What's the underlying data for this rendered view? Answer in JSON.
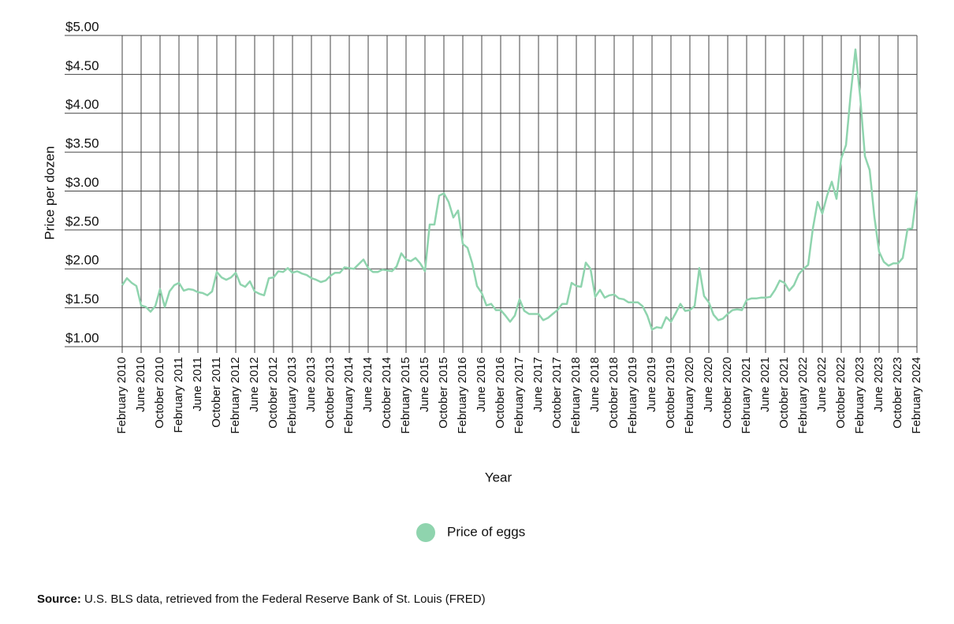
{
  "chart_data": {
    "type": "line",
    "y_label": "Price per dozen",
    "x_label": "Year",
    "categories": [
      "February 2010",
      null,
      null,
      null,
      "June 2010",
      null,
      null,
      null,
      "October 2010",
      null,
      null,
      null,
      "February 2011",
      null,
      null,
      null,
      "June 2011",
      null,
      null,
      null,
      "October 2011",
      null,
      null,
      null,
      "February 2012",
      null,
      null,
      null,
      "June 2012",
      null,
      null,
      null,
      "October 2012",
      null,
      null,
      null,
      "February 2013",
      null,
      null,
      null,
      "June 2013",
      null,
      null,
      null,
      "October 2013",
      null,
      null,
      null,
      "February 2014",
      null,
      null,
      null,
      "June 2014",
      null,
      null,
      null,
      "October 2014",
      null,
      null,
      null,
      "February 2015",
      null,
      null,
      null,
      "June 2015",
      null,
      null,
      null,
      "October 2015",
      null,
      null,
      null,
      "February 2016",
      null,
      null,
      null,
      "June 2016",
      null,
      null,
      null,
      "October 2016",
      null,
      null,
      null,
      "February 2017",
      null,
      null,
      null,
      "June 2017",
      null,
      null,
      null,
      "October 2017",
      null,
      null,
      null,
      "February 2018",
      null,
      null,
      null,
      "June 2018",
      null,
      null,
      null,
      "October 2018",
      null,
      null,
      null,
      "February 2019",
      null,
      null,
      null,
      "June 2019",
      null,
      null,
      null,
      "October 2019",
      null,
      null,
      null,
      "February 2020",
      null,
      null,
      null,
      "June 2020",
      null,
      null,
      null,
      "October 2020",
      null,
      null,
      null,
      "February 2021",
      null,
      null,
      null,
      "June 2021",
      null,
      null,
      null,
      "October 2021",
      null,
      null,
      null,
      "February 2022",
      null,
      null,
      null,
      "June 2022",
      null,
      null,
      null,
      "October 2022",
      null,
      null,
      null,
      "February 2023",
      null,
      null,
      null,
      "June 2023",
      null,
      null,
      null,
      "October 2023",
      null,
      null,
      null,
      "February 2024"
    ],
    "series": [
      {
        "name": "Price of eggs",
        "color": "#8fd4ae",
        "values": [
          1.79,
          1.88,
          1.82,
          1.78,
          1.53,
          1.51,
          1.45,
          1.52,
          1.74,
          1.51,
          1.71,
          1.79,
          1.82,
          1.72,
          1.74,
          1.73,
          1.7,
          1.69,
          1.66,
          1.71,
          1.96,
          1.89,
          1.86,
          1.89,
          1.95,
          1.8,
          1.77,
          1.84,
          1.71,
          1.68,
          1.66,
          1.88,
          1.89,
          1.97,
          1.96,
          2.01,
          1.95,
          1.97,
          1.94,
          1.92,
          1.88,
          1.86,
          1.83,
          1.85,
          1.91,
          1.95,
          1.95,
          2.02,
          2.01,
          2.0,
          2.06,
          2.12,
          2.01,
          1.96,
          1.96,
          1.99,
          1.98,
          1.97,
          2.03,
          2.2,
          2.12,
          2.1,
          2.14,
          2.07,
          1.97,
          2.57,
          2.57,
          2.94,
          2.97,
          2.86,
          2.66,
          2.75,
          2.32,
          2.27,
          2.07,
          1.78,
          1.69,
          1.53,
          1.55,
          1.47,
          1.47,
          1.4,
          1.32,
          1.4,
          1.61,
          1.46,
          1.42,
          1.42,
          1.42,
          1.34,
          1.37,
          1.42,
          1.47,
          1.55,
          1.55,
          1.82,
          1.78,
          1.77,
          2.08,
          2.0,
          1.64,
          1.73,
          1.63,
          1.66,
          1.67,
          1.62,
          1.61,
          1.57,
          1.57,
          1.57,
          1.52,
          1.4,
          1.22,
          1.25,
          1.24,
          1.38,
          1.32,
          1.43,
          1.55,
          1.46,
          1.47,
          1.52,
          2.01,
          1.65,
          1.57,
          1.41,
          1.34,
          1.36,
          1.42,
          1.47,
          1.48,
          1.47,
          1.6,
          1.62,
          1.62,
          1.63,
          1.63,
          1.64,
          1.73,
          1.85,
          1.82,
          1.72,
          1.79,
          1.93,
          2.0,
          2.05,
          2.52,
          2.86,
          2.71,
          2.94,
          3.12,
          2.9,
          3.42,
          3.59,
          4.25,
          4.82,
          4.21,
          3.45,
          3.27,
          2.67,
          2.22,
          2.09,
          2.04,
          2.07,
          2.07,
          2.14,
          2.51,
          2.52,
          3.0
        ]
      }
    ],
    "ylim": [
      1,
      5
    ],
    "yticks": [
      {
        "value": 1,
        "label": "$1.00"
      },
      {
        "value": 1.5,
        "label": "$1.50"
      },
      {
        "value": 2,
        "label": "$2.00"
      },
      {
        "value": 2.5,
        "label": "$2.50"
      },
      {
        "value": 3,
        "label": "$3.00"
      },
      {
        "value": 3.5,
        "label": "$3.50"
      },
      {
        "value": 4,
        "label": "$4.00"
      },
      {
        "value": 4.5,
        "label": "$4.50"
      },
      {
        "value": 5,
        "label": "$5.00"
      }
    ],
    "grid": true,
    "legend": "bottom",
    "source": {
      "label": "Source:",
      "text": "U.S. BLS data, retrieved from the Federal Reserve Bank of St. Louis (FRED)"
    }
  }
}
